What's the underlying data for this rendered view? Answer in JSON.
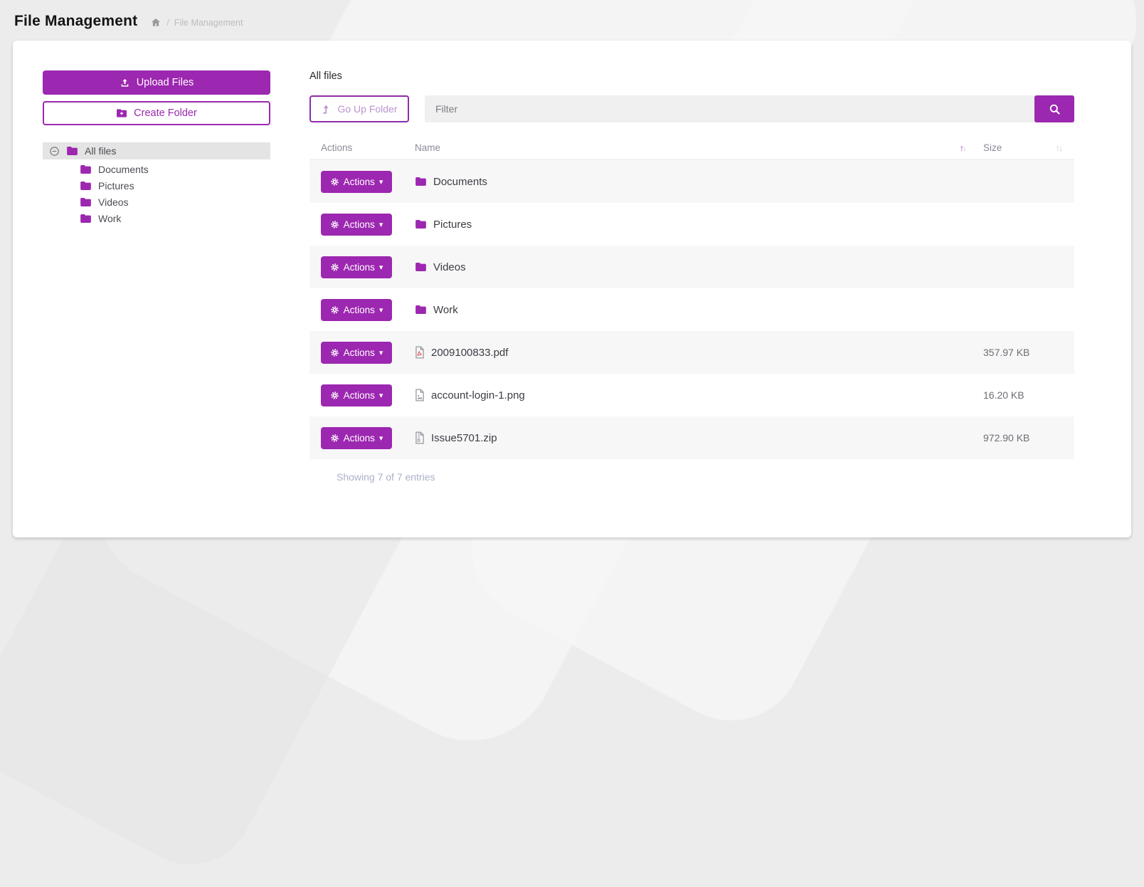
{
  "header": {
    "title": "File Management",
    "breadcrumb": {
      "separator": "/",
      "current": "File Management"
    }
  },
  "sidebar": {
    "upload_label": "Upload Files",
    "create_folder_label": "Create Folder",
    "tree": {
      "root_label": "All files",
      "children": [
        "Documents",
        "Pictures",
        "Videos",
        "Work"
      ]
    }
  },
  "main": {
    "current_folder": "All files",
    "go_up_label": "Go Up Folder",
    "filter_placeholder": "Filter",
    "table": {
      "headers": {
        "actions": "Actions",
        "name": "Name",
        "size": "Size"
      },
      "actions_label": "Actions",
      "rows": [
        {
          "name": "Documents",
          "type": "folder",
          "size": ""
        },
        {
          "name": "Pictures",
          "type": "folder",
          "size": ""
        },
        {
          "name": "Videos",
          "type": "folder",
          "size": ""
        },
        {
          "name": "Work",
          "type": "folder",
          "size": ""
        },
        {
          "name": "2009100833.pdf",
          "type": "file-pdf",
          "size": "357.97 KB"
        },
        {
          "name": "account-login-1.png",
          "type": "file-image",
          "size": "16.20 KB"
        },
        {
          "name": "Issue5701.zip",
          "type": "file-archive",
          "size": "972.90 KB"
        }
      ]
    },
    "footer": "Showing 7 of 7 entries"
  },
  "icons": {
    "caret_down": "▾",
    "sort_up": "↑",
    "sort_down": "↓"
  },
  "colors": {
    "accent": "#9c27b0",
    "selected_tree_bg": "#e4e4e4",
    "stripe_row_bg": "#f7f7f8",
    "muted_text": "#8b8b98"
  }
}
